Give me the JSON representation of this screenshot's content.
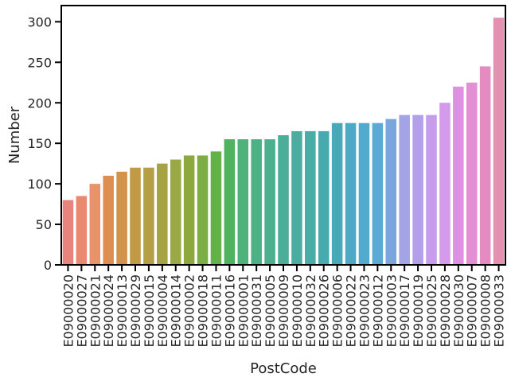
{
  "chart_data": {
    "type": "bar",
    "title": "",
    "xlabel": "PostCode",
    "ylabel": "Number",
    "ylim": [
      0,
      320
    ],
    "yticks": [
      0,
      50,
      100,
      150,
      200,
      250,
      300
    ],
    "grid": false,
    "categories": [
      "E09000020",
      "E09000027",
      "E09000021",
      "E09000024",
      "E09000013",
      "E09000029",
      "E09000015",
      "E09000004",
      "E09000014",
      "E09000002",
      "E09000018",
      "E09000011",
      "E09000016",
      "E09000001",
      "E09000031",
      "E09000005",
      "E09000009",
      "E09000010",
      "E09000032",
      "E09000026",
      "E09000006",
      "E09000022",
      "E09000023",
      "E09000012",
      "E09000003",
      "E09000017",
      "E09000019",
      "E09000025",
      "E09000028",
      "E09000030",
      "E09000007",
      "E09000008",
      "E09000033"
    ],
    "values": [
      80,
      85,
      100,
      110,
      115,
      120,
      120,
      125,
      130,
      135,
      135,
      140,
      155,
      155,
      155,
      155,
      160,
      165,
      165,
      165,
      175,
      175,
      175,
      175,
      180,
      185,
      185,
      185,
      200,
      220,
      225,
      245,
      305
    ],
    "colors": [
      "#e8837e",
      "#e98a70",
      "#e9936b",
      "#dd8e50",
      "#d3934c",
      "#c29a45",
      "#b59e45",
      "#a6a345",
      "#9aa845",
      "#8ca83e",
      "#7dae45",
      "#63b14a",
      "#4fb35d",
      "#4eb27a",
      "#4db186",
      "#4cb08f",
      "#4bae98",
      "#4aad9f",
      "#49aca6",
      "#47aaae",
      "#4aa9b8",
      "#4caac4",
      "#52aacd",
      "#5baad6",
      "#7ba5dd",
      "#a3a3e6",
      "#b4a0ea",
      "#c79cec",
      "#d49aec",
      "#e090e1",
      "#e48fd4",
      "#e48bc2",
      "#e490b1"
    ]
  }
}
